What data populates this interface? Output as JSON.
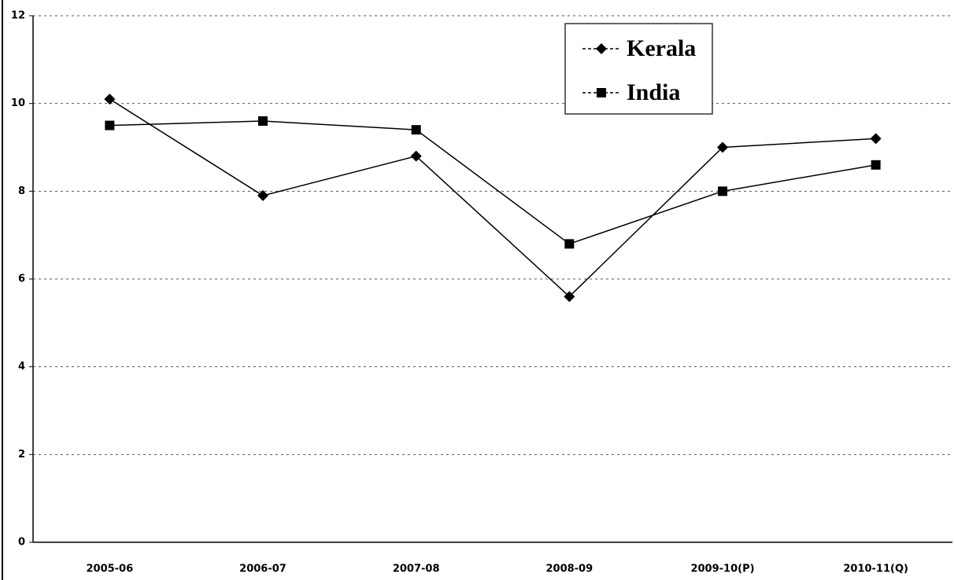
{
  "chart_data": {
    "type": "line",
    "categories": [
      "2005-06",
      "2006-07",
      "2007-08",
      "2008-09",
      "2009-10(P)",
      "2010-11(Q)"
    ],
    "series": [
      {
        "name": "Kerala",
        "color": "#000000",
        "marker": "diamond",
        "values": [
          10.1,
          7.9,
          8.8,
          5.6,
          9.0,
          9.2
        ]
      },
      {
        "name": "India",
        "color": "#000000",
        "marker": "square",
        "values": [
          9.5,
          9.6,
          9.4,
          6.8,
          8.0,
          8.6
        ]
      }
    ],
    "ylim": [
      0,
      12
    ],
    "yticks": [
      0,
      2,
      4,
      6,
      8,
      10,
      12
    ],
    "grid": true,
    "legend": "top-right"
  }
}
